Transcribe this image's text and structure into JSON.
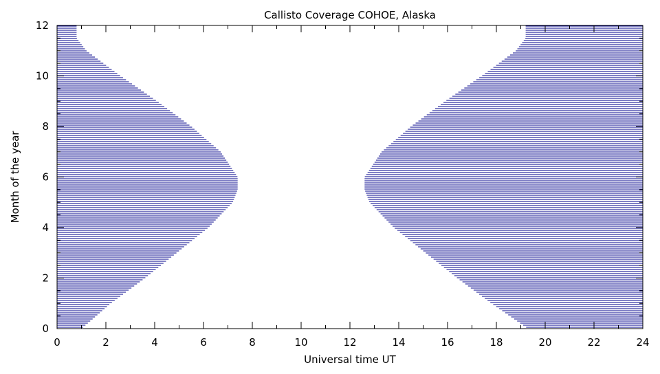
{
  "chart_data": {
    "type": "area",
    "title": "Callisto Coverage COHOE, Alaska",
    "xlabel": "Universal time UT",
    "ylabel": "Month of the year",
    "xlim": [
      0,
      24
    ],
    "ylim": [
      0,
      12
    ],
    "x_ticks": [
      "0",
      "2",
      "4",
      "6",
      "8",
      "10",
      "12",
      "14",
      "16",
      "18",
      "20",
      "22",
      "24"
    ],
    "y_ticks": [
      "0",
      "2",
      "4",
      "6",
      "8",
      "10",
      "12"
    ],
    "fill_color": "#00008b",
    "fill_style": "horizontal-hatch",
    "grid": false,
    "series": [
      {
        "y": [
          0,
          1,
          2,
          3,
          4,
          5,
          5.5,
          6,
          7,
          8,
          9,
          10,
          11,
          11.5,
          12
        ],
        "x": [
          1.0,
          2.2,
          3.6,
          4.9,
          6.2,
          7.2,
          7.4,
          7.4,
          6.7,
          5.5,
          4.1,
          2.6,
          1.2,
          0.8,
          0.8
        ]
      },
      {
        "y": [
          0,
          1,
          2,
          3,
          4,
          5,
          5.5,
          6,
          7,
          8,
          9,
          10,
          11,
          11.5,
          12
        ],
        "x": [
          19.3,
          17.8,
          16.4,
          15.1,
          13.8,
          12.8,
          12.6,
          12.6,
          13.3,
          14.5,
          15.9,
          17.4,
          18.8,
          19.2,
          19.2
        ]
      }
    ]
  }
}
